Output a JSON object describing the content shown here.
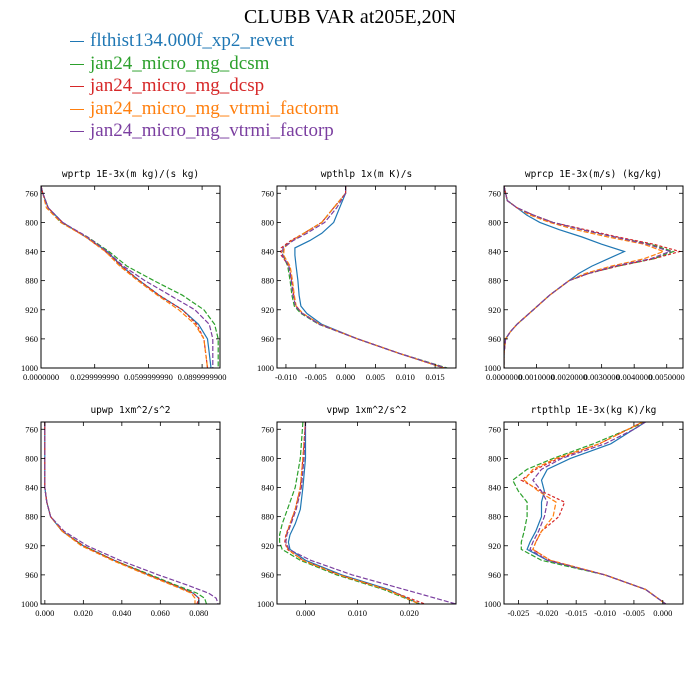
{
  "title": "CLUBB VAR at205E,20N",
  "legend": [
    {
      "label": "flthist134.000f_xp2_revert",
      "color": "#1f77b4"
    },
    {
      "label": "jan24_micro_mg_dcsm",
      "color": "#2ca02c"
    },
    {
      "label": "jan24_micro_mg_dcsp",
      "color": "#d62728"
    },
    {
      "label": "jan24_micro_mg_vtrmi_factorm",
      "color": "#ff7f0e"
    },
    {
      "label": "jan24_micro_mg_vtrmi_factorp",
      "color": "#7b3fa0"
    }
  ],
  "chart_data": [
    {
      "type": "line",
      "title": "wprtp  1E-3x(m kg)/(s kg)",
      "ylim": [
        1000,
        750
      ],
      "yticks": [
        "760",
        "800",
        "840",
        "880",
        "920",
        "960",
        "1000"
      ],
      "yticks_values": [
        760,
        800,
        840,
        880,
        920,
        960,
        1000
      ],
      "xlim": [
        0,
        0.1
      ],
      "xticks_values": [
        0,
        0.03,
        0.06,
        0.09
      ],
      "xticks": [
        "0.0000000",
        "0.0299999990",
        "0.0599999990",
        "0.0899999900"
      ],
      "y": [
        750,
        760,
        780,
        800,
        820,
        840,
        860,
        880,
        900,
        920,
        940,
        960,
        980,
        1000
      ],
      "series": [
        {
          "x": [
            0.0,
            0.001,
            0.004,
            0.012,
            0.025,
            0.037,
            0.045,
            0.055,
            0.066,
            0.079,
            0.088,
            0.093,
            0.094,
            0.095
          ]
        },
        {
          "x": [
            0.0,
            0.001,
            0.004,
            0.011,
            0.026,
            0.038,
            0.048,
            0.063,
            0.079,
            0.091,
            0.097,
            0.099,
            0.099,
            0.099
          ]
        },
        {
          "x": [
            0.0,
            0.001,
            0.004,
            0.012,
            0.025,
            0.036,
            0.045,
            0.055,
            0.066,
            0.079,
            0.087,
            0.091,
            0.092,
            0.093
          ]
        },
        {
          "x": [
            0.0,
            0.001,
            0.003,
            0.011,
            0.025,
            0.036,
            0.044,
            0.054,
            0.065,
            0.077,
            0.086,
            0.091,
            0.092,
            0.093
          ]
        },
        {
          "x": [
            0.0,
            0.001,
            0.004,
            0.012,
            0.026,
            0.037,
            0.046,
            0.058,
            0.072,
            0.086,
            0.094,
            0.096,
            0.096,
            0.096
          ]
        }
      ]
    },
    {
      "type": "line",
      "title": "wpthlp  1x(m K)/s",
      "ylim": [
        1000,
        750
      ],
      "yticks": [
        "760",
        "800",
        "840",
        "880",
        "920",
        "960",
        "1000"
      ],
      "yticks_values": [
        760,
        800,
        840,
        880,
        920,
        960,
        1000
      ],
      "xlim": [
        -0.0115,
        0.0185
      ],
      "xticks_values": [
        -0.01,
        -0.005,
        0,
        0.005,
        0.01,
        0.015
      ],
      "xticks": [
        "-0.010",
        "-0.005",
        "0.000",
        "0.005",
        "0.010",
        "0.015"
      ],
      "y": [
        750,
        760,
        780,
        800,
        815,
        825,
        835,
        845,
        860,
        880,
        900,
        915,
        925,
        940,
        960,
        980,
        1000
      ],
      "series": [
        {
          "x": [
            0.0,
            0.0,
            -0.001,
            -0.002,
            -0.004,
            -0.006,
            -0.0085,
            -0.0085,
            -0.0083,
            -0.008,
            -0.0078,
            -0.0075,
            -0.0065,
            -0.004,
            0.002,
            0.009,
            0.0165
          ]
        },
        {
          "x": [
            0.0,
            0.0,
            -0.002,
            -0.004,
            -0.007,
            -0.009,
            -0.0105,
            -0.0105,
            -0.0097,
            -0.0093,
            -0.009,
            -0.0086,
            -0.0075,
            -0.0045,
            0.002,
            0.009,
            0.017
          ]
        },
        {
          "x": [
            0.0,
            0.0,
            -0.002,
            -0.004,
            -0.007,
            -0.0092,
            -0.0108,
            -0.0108,
            -0.0095,
            -0.009,
            -0.0087,
            -0.0083,
            -0.0072,
            -0.0043,
            0.002,
            0.009,
            0.0165
          ]
        },
        {
          "x": [
            0.0,
            0.0,
            -0.002,
            -0.004,
            -0.007,
            -0.009,
            -0.0103,
            -0.0104,
            -0.0093,
            -0.0089,
            -0.0086,
            -0.0083,
            -0.0072,
            -0.0043,
            0.002,
            0.009,
            0.0165
          ]
        },
        {
          "x": [
            0.0,
            0.0,
            -0.0015,
            -0.0035,
            -0.0065,
            -0.0088,
            -0.0105,
            -0.0106,
            -0.0095,
            -0.0091,
            -0.0088,
            -0.0084,
            -0.0073,
            -0.0044,
            0.002,
            0.009,
            0.0168
          ]
        }
      ]
    },
    {
      "type": "line",
      "title": "wprcp  1E-3x(m/s) (kg/kg)",
      "ylim": [
        1000,
        750
      ],
      "yticks": [
        "760",
        "800",
        "840",
        "880",
        "920",
        "960",
        "1000"
      ],
      "yticks_values": [
        760,
        800,
        840,
        880,
        920,
        960,
        1000
      ],
      "xlim": [
        0,
        0.0055
      ],
      "xticks_values": [
        0,
        0.001,
        0.002,
        0.003,
        0.004,
        0.005
      ],
      "xticks": [
        "0.0000000",
        "0.0010000",
        "0.0020000",
        "0.0030000",
        "0.0040000",
        "0.0050000"
      ],
      "y": [
        750,
        770,
        780,
        790,
        800,
        810,
        820,
        830,
        840,
        850,
        860,
        870,
        880,
        900,
        920,
        940,
        950,
        960,
        980,
        1000
      ],
      "series": [
        {
          "x": [
            0.0,
            0.0001,
            0.0004,
            0.0007,
            0.0011,
            0.0017,
            0.0024,
            0.003,
            0.0037,
            0.0032,
            0.0027,
            0.0023,
            0.002,
            0.0014,
            0.0009,
            0.0004,
            0.0002,
            5e-05,
            0.0,
            0.0
          ]
        },
        {
          "x": [
            0.0,
            0.0001,
            0.0004,
            0.0009,
            0.0015,
            0.0024,
            0.0034,
            0.0045,
            0.0052,
            0.0046,
            0.0035,
            0.0026,
            0.002,
            0.0014,
            0.0009,
            0.0004,
            0.0002,
            5e-05,
            0.0,
            0.0
          ]
        },
        {
          "x": [
            0.0,
            0.0001,
            0.0004,
            0.0009,
            0.0015,
            0.0025,
            0.0035,
            0.0046,
            0.0054,
            0.0046,
            0.0035,
            0.0026,
            0.002,
            0.0014,
            0.0009,
            0.0004,
            0.0002,
            5e-05,
            0.0,
            0.0
          ]
        },
        {
          "x": [
            0.0,
            0.0001,
            0.0004,
            0.0008,
            0.0014,
            0.0022,
            0.0032,
            0.0043,
            0.0049,
            0.0043,
            0.0033,
            0.0025,
            0.002,
            0.0014,
            0.0009,
            0.0004,
            0.0002,
            5e-05,
            0.0,
            0.0
          ]
        },
        {
          "x": [
            0.0,
            0.0001,
            0.0004,
            0.0009,
            0.0015,
            0.0024,
            0.0034,
            0.0044,
            0.0051,
            0.0045,
            0.0034,
            0.0026,
            0.002,
            0.0014,
            0.0009,
            0.0004,
            0.0002,
            5e-05,
            0.0,
            0.0
          ]
        }
      ]
    },
    {
      "type": "line",
      "title": "upwp  1xm^2/s^2",
      "ylim": [
        1000,
        750
      ],
      "yticks": [
        "760",
        "800",
        "840",
        "880",
        "920",
        "960",
        "1000"
      ],
      "yticks_values": [
        760,
        800,
        840,
        880,
        920,
        960,
        1000
      ],
      "xlim": [
        -0.002,
        0.091
      ],
      "xticks_values": [
        0,
        0.02,
        0.04,
        0.06,
        0.08
      ],
      "xticks": [
        "0.000",
        "0.020",
        "0.040",
        "0.060",
        "0.080"
      ],
      "y": [
        750,
        800,
        840,
        860,
        880,
        900,
        920,
        940,
        960,
        975,
        985,
        992,
        1000
      ],
      "series": [
        {
          "x": [
            0.0,
            0.0,
            0.0,
            0.001,
            0.003,
            0.009,
            0.02,
            0.036,
            0.054,
            0.068,
            0.077,
            0.08,
            0.08
          ]
        },
        {
          "x": [
            0.0,
            0.0,
            0.0,
            0.001,
            0.003,
            0.009,
            0.02,
            0.036,
            0.055,
            0.069,
            0.079,
            0.083,
            0.084
          ]
        },
        {
          "x": [
            0.0,
            0.0,
            0.0,
            0.001,
            0.003,
            0.009,
            0.02,
            0.036,
            0.054,
            0.068,
            0.077,
            0.08,
            0.079
          ]
        },
        {
          "x": [
            0.0,
            0.0,
            0.0,
            0.001,
            0.003,
            0.009,
            0.019,
            0.035,
            0.053,
            0.067,
            0.076,
            0.078,
            0.078
          ]
        },
        {
          "x": [
            0.0,
            0.0,
            0.0,
            0.001,
            0.003,
            0.01,
            0.022,
            0.039,
            0.059,
            0.075,
            0.085,
            0.089,
            0.09
          ]
        }
      ]
    },
    {
      "type": "line",
      "title": "vpwp  1xm^2/s^2",
      "ylim": [
        1000,
        750
      ],
      "yticks": [
        "760",
        "800",
        "840",
        "880",
        "920",
        "960",
        "1000"
      ],
      "yticks_values": [
        760,
        800,
        840,
        880,
        920,
        960,
        1000
      ],
      "xlim": [
        -0.0055,
        0.029
      ],
      "xticks_values": [
        0,
        0.01,
        0.02
      ],
      "xticks": [
        "0.000",
        "0.010",
        "0.020"
      ],
      "y": [
        750,
        800,
        840,
        870,
        890,
        905,
        915,
        925,
        940,
        960,
        980,
        1000
      ],
      "series": [
        {
          "x": [
            0.0,
            0.0,
            -0.0005,
            -0.001,
            -0.002,
            -0.003,
            -0.0033,
            -0.003,
            0.0,
            0.007,
            0.016,
            0.022
          ]
        },
        {
          "x": [
            -0.0005,
            -0.001,
            -0.002,
            -0.0035,
            -0.0045,
            -0.005,
            -0.005,
            -0.0045,
            -0.001,
            0.006,
            0.015,
            0.022
          ]
        },
        {
          "x": [
            0.0,
            -0.0005,
            -0.001,
            -0.002,
            -0.003,
            -0.0038,
            -0.004,
            -0.0035,
            -0.0005,
            0.0065,
            0.0155,
            0.023
          ]
        },
        {
          "x": [
            0.0,
            -0.0005,
            -0.001,
            -0.002,
            -0.003,
            -0.0037,
            -0.0038,
            -0.0034,
            -0.0005,
            0.0065,
            0.0155,
            0.022
          ]
        },
        {
          "x": [
            0.0,
            -0.0003,
            -0.0008,
            -0.0018,
            -0.0028,
            -0.0036,
            -0.0038,
            -0.0032,
            0.001,
            0.009,
            0.019,
            0.029
          ]
        }
      ]
    },
    {
      "type": "line",
      "title": "rtpthlp  1E-3x(kg K)/kg",
      "ylim": [
        1000,
        750
      ],
      "yticks": [
        "760",
        "800",
        "840",
        "880",
        "920",
        "960",
        "1000"
      ],
      "yticks_values": [
        760,
        800,
        840,
        880,
        920,
        960,
        1000
      ],
      "xlim": [
        -0.0275,
        0.0035
      ],
      "xticks_values": [
        -0.025,
        -0.02,
        -0.015,
        -0.01,
        -0.005,
        0
      ],
      "xticks": [
        "-0.025",
        "-0.020",
        "-0.015",
        "-0.010",
        "-0.005",
        "0.000"
      ],
      "y": [
        750,
        760,
        780,
        800,
        815,
        830,
        845,
        860,
        880,
        900,
        915,
        925,
        940,
        960,
        980,
        1000
      ],
      "series": [
        {
          "x": [
            -0.003,
            -0.005,
            -0.009,
            -0.016,
            -0.02,
            -0.021,
            -0.0205,
            -0.021,
            -0.021,
            -0.022,
            -0.023,
            -0.0235,
            -0.02,
            -0.01,
            -0.003,
            0.0005
          ]
        },
        {
          "x": [
            -0.003,
            -0.006,
            -0.012,
            -0.019,
            -0.0235,
            -0.026,
            -0.025,
            -0.0235,
            -0.0235,
            -0.024,
            -0.0245,
            -0.0245,
            -0.021,
            -0.01,
            -0.003,
            0.0005
          ]
        },
        {
          "x": [
            -0.0035,
            -0.006,
            -0.011,
            -0.018,
            -0.022,
            -0.0245,
            -0.021,
            -0.017,
            -0.018,
            -0.021,
            -0.022,
            -0.0225,
            -0.0195,
            -0.01,
            -0.003,
            0.0005
          ]
        },
        {
          "x": [
            -0.0035,
            -0.006,
            -0.011,
            -0.0185,
            -0.0225,
            -0.024,
            -0.0215,
            -0.0185,
            -0.019,
            -0.021,
            -0.022,
            -0.0225,
            -0.0195,
            -0.01,
            -0.003,
            0.0005
          ]
        },
        {
          "x": [
            -0.003,
            -0.005,
            -0.01,
            -0.0175,
            -0.021,
            -0.0225,
            -0.021,
            -0.02,
            -0.0205,
            -0.0215,
            -0.0225,
            -0.023,
            -0.02,
            -0.01,
            -0.003,
            0.0005
          ]
        }
      ]
    }
  ]
}
